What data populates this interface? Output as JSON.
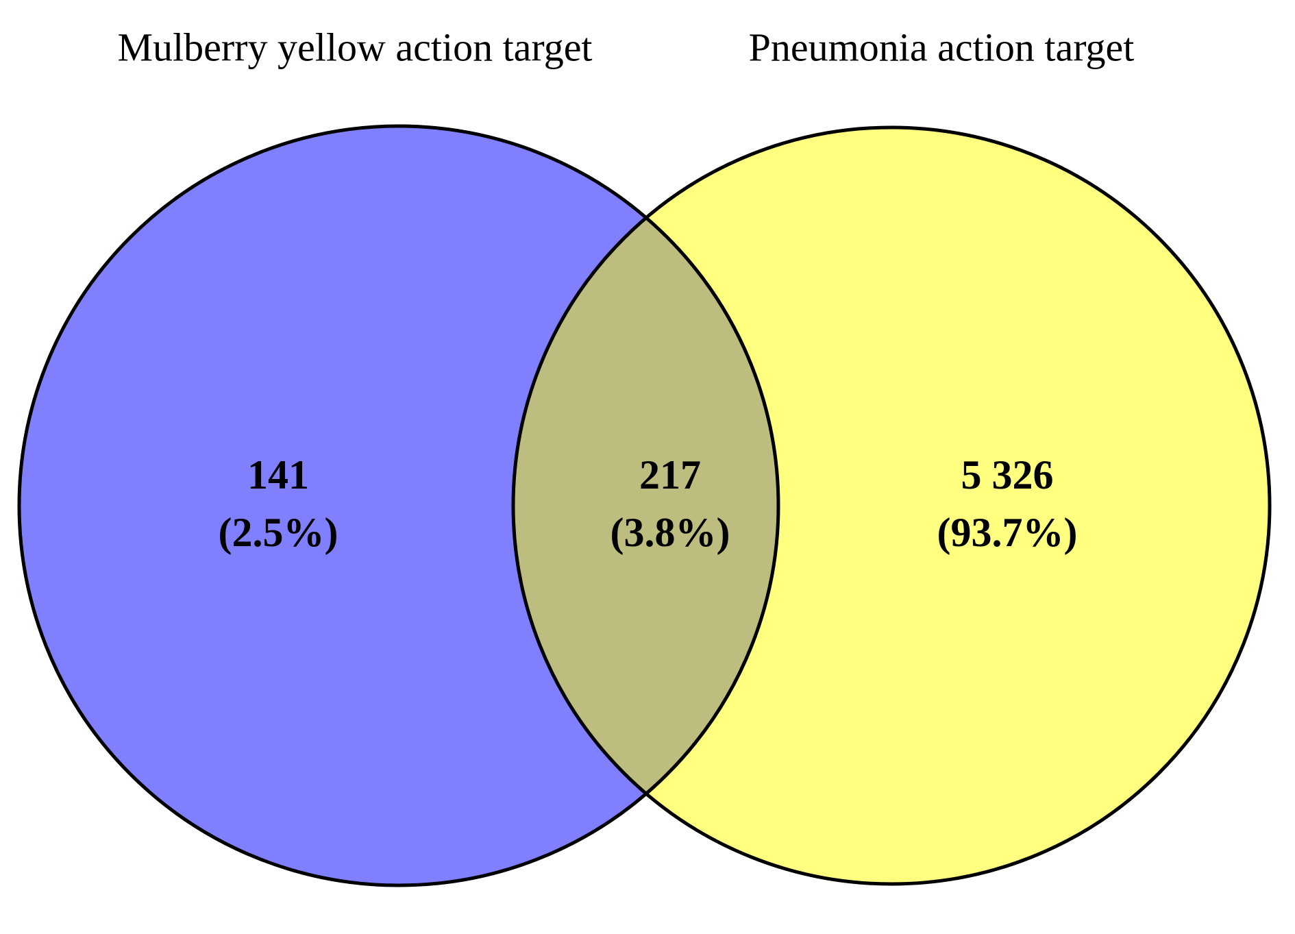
{
  "chart_data": {
    "type": "venn",
    "sets": [
      {
        "name": "Mulberry yellow action target",
        "color": "#8080ff"
      },
      {
        "name": "Pneumonia action target",
        "color": "#ffff80"
      }
    ],
    "overlap_color": "#bdbd80",
    "values": [
      141,
      217,
      5326
    ],
    "value_labels": [
      "141",
      "217",
      "5 326"
    ],
    "percents": [
      2.5,
      3.8,
      93.7
    ],
    "percent_labels": [
      "(2.5%)",
      "(3.8%)",
      "(93.7%)"
    ]
  }
}
